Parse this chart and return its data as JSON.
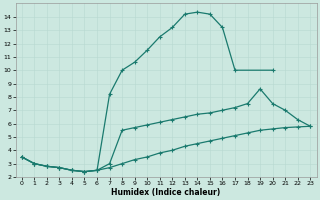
{
  "xlabel": "Humidex (Indice chaleur)",
  "xlim": [
    -0.5,
    23.5
  ],
  "ylim": [
    2,
    15
  ],
  "xticks": [
    0,
    1,
    2,
    3,
    4,
    5,
    6,
    7,
    8,
    9,
    10,
    11,
    12,
    13,
    14,
    15,
    16,
    17,
    18,
    19,
    20,
    21,
    22,
    23
  ],
  "yticks": [
    2,
    3,
    4,
    5,
    6,
    7,
    8,
    9,
    10,
    11,
    12,
    13,
    14
  ],
  "line_color": "#1a7a6e",
  "bg_color": "#cce8e0",
  "line_a_x": [
    0,
    1,
    2,
    3,
    4,
    5,
    6,
    7,
    8,
    9,
    10,
    11,
    12,
    13,
    14,
    15,
    16,
    17,
    20
  ],
  "line_a_y": [
    3.5,
    3.0,
    2.8,
    2.7,
    2.5,
    2.4,
    2.5,
    8.2,
    10.0,
    10.6,
    11.5,
    12.5,
    13.2,
    14.2,
    14.35,
    14.2,
    13.2,
    10.0,
    10.0
  ],
  "line_b_x": [
    0,
    1,
    2,
    3,
    4,
    5,
    6,
    7,
    8,
    9,
    10,
    11,
    12,
    13,
    14,
    15,
    16,
    17,
    18,
    19,
    20,
    21,
    22,
    23
  ],
  "line_b_y": [
    3.5,
    3.0,
    2.8,
    2.7,
    2.5,
    2.4,
    2.5,
    3.0,
    5.5,
    5.7,
    5.9,
    6.1,
    6.3,
    6.5,
    6.7,
    6.8,
    7.0,
    7.2,
    7.5,
    8.6,
    7.5,
    7.0,
    6.3,
    5.8
  ],
  "line_c_x": [
    0,
    1,
    2,
    3,
    4,
    5,
    6,
    7,
    8,
    9,
    10,
    11,
    12,
    13,
    14,
    15,
    16,
    17,
    18,
    19,
    20,
    21,
    22,
    23
  ],
  "line_c_y": [
    3.5,
    3.0,
    2.8,
    2.7,
    2.5,
    2.4,
    2.5,
    2.7,
    3.0,
    3.3,
    3.5,
    3.8,
    4.0,
    4.3,
    4.5,
    4.7,
    4.9,
    5.1,
    5.3,
    5.5,
    5.6,
    5.7,
    5.75,
    5.8
  ]
}
